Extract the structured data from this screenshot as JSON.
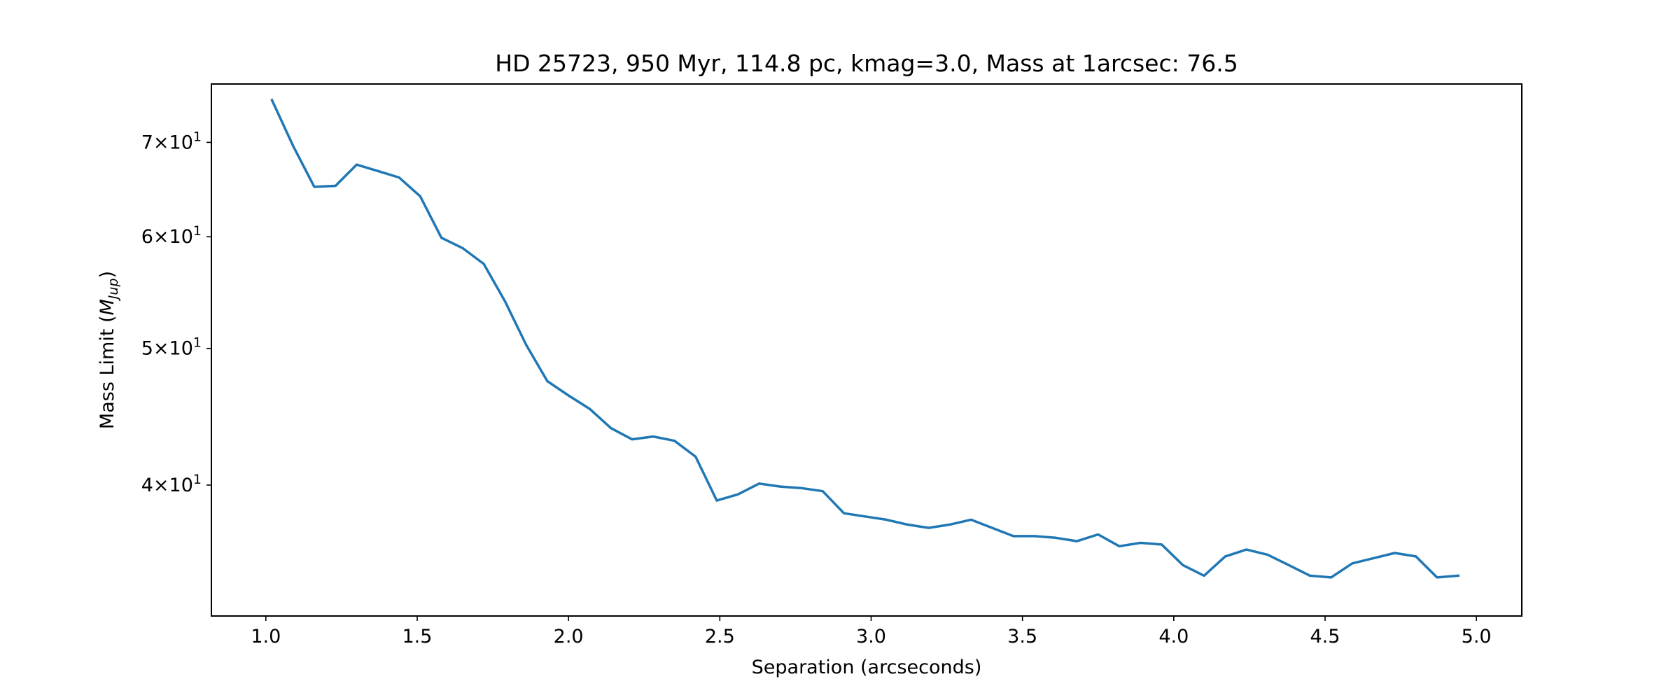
{
  "chart_data": {
    "type": "line",
    "title": "HD 25723, 950 Myr, 114.8 pc, kmag=3.0, Mass at 1arcsec: 76.5",
    "xlabel": "Separation (arcseconds)",
    "ylabel": "Mass Limit (M_Jup)",
    "ylabel_main": "Mass Limit (",
    "ylabel_var": "M",
    "ylabel_sub": "Jup",
    "ylabel_close": ")",
    "xlim": [
      0.82,
      5.15
    ],
    "ylim": [
      32.3,
      77.0
    ],
    "yscale": "log",
    "grid": false,
    "line_color": "#1f77b4",
    "x_ticks": [
      {
        "value": 1.0,
        "label": "1.0"
      },
      {
        "value": 1.5,
        "label": "1.5"
      },
      {
        "value": 2.0,
        "label": "2.0"
      },
      {
        "value": 2.5,
        "label": "2.5"
      },
      {
        "value": 3.0,
        "label": "3.0"
      },
      {
        "value": 3.5,
        "label": "3.5"
      },
      {
        "value": 4.0,
        "label": "4.0"
      },
      {
        "value": 4.5,
        "label": "4.5"
      },
      {
        "value": 5.0,
        "label": "5.0"
      }
    ],
    "y_ticks": [
      {
        "value": 40,
        "mantissa": "4",
        "base": "10",
        "exp": "1"
      },
      {
        "value": 50,
        "mantissa": "5",
        "base": "10",
        "exp": "1"
      },
      {
        "value": 60,
        "mantissa": "6",
        "base": "10",
        "exp": "1"
      },
      {
        "value": 70,
        "mantissa": "7",
        "base": "10",
        "exp": "1"
      }
    ],
    "series": [
      {
        "x": [
          1.02,
          1.09,
          1.16,
          1.23,
          1.3,
          1.37,
          1.44,
          1.51,
          1.58,
          1.65,
          1.72,
          1.79,
          1.86,
          1.93,
          2.0,
          2.07,
          2.14,
          2.21,
          2.28,
          2.35,
          2.42,
          2.49,
          2.56,
          2.63,
          2.7,
          2.77,
          2.84,
          2.91,
          2.98,
          3.05,
          3.12,
          3.19,
          3.26,
          3.33,
          3.4,
          3.47,
          3.54,
          3.61,
          3.68,
          3.75,
          3.82,
          3.89,
          3.96,
          4.03,
          4.1,
          4.17,
          4.24,
          4.31,
          4.38,
          4.45,
          4.52,
          4.59,
          4.66,
          4.73,
          4.8,
          4.87,
          4.94
        ],
        "y": [
          75.0,
          69.6,
          65.1,
          65.2,
          67.5,
          66.8,
          66.1,
          64.1,
          59.9,
          58.9,
          57.4,
          54.0,
          50.3,
          47.4,
          46.3,
          45.3,
          43.9,
          43.1,
          43.3,
          43.0,
          41.9,
          39.0,
          39.4,
          40.1,
          39.9,
          39.8,
          39.6,
          38.2,
          38.0,
          37.8,
          37.5,
          37.3,
          37.5,
          37.8,
          37.3,
          36.8,
          36.8,
          36.7,
          36.5,
          36.9,
          36.2,
          36.4,
          36.3,
          35.1,
          34.5,
          35.6,
          36.0,
          35.7,
          35.1,
          34.5,
          34.4,
          35.2,
          35.5,
          35.8,
          35.6,
          34.4,
          34.5
        ]
      }
    ]
  }
}
